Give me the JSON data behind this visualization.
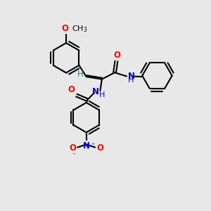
{
  "bg_color": "#e8e8e8",
  "bond_color": "#000000",
  "n_color": "#0000cd",
  "o_color": "#ff0000",
  "h_color": "#2f8080",
  "line_width": 1.5,
  "fig_size": [
    3.0,
    3.0
  ],
  "dpi": 100,
  "xlim": [
    0,
    10
  ],
  "ylim": [
    0,
    10
  ],
  "font_size": 8.5,
  "ring_r": 0.72
}
